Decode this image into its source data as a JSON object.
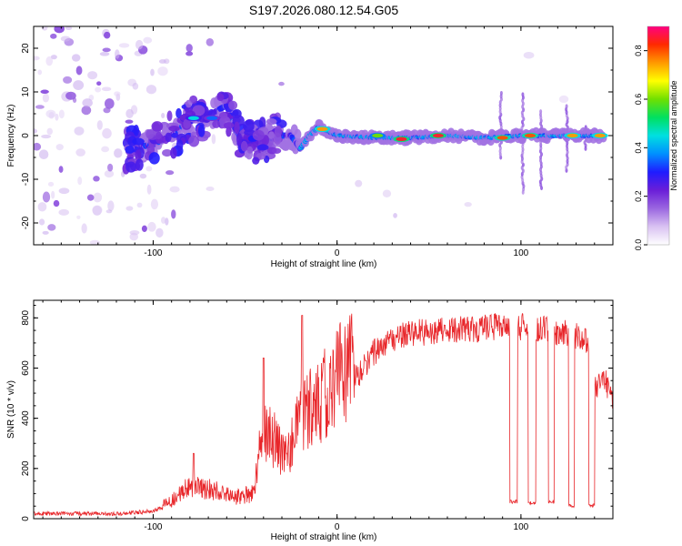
{
  "figure_title": "S197.2026.080.12.54.G05",
  "colors": {
    "snr_line": "#e8262a",
    "axis": "#000000",
    "background": "#ffffff"
  },
  "colorbar": {
    "label": "Normalized spectral amplitude",
    "range": [
      0.0,
      0.9
    ],
    "ticks": [
      "0.0",
      "0.2",
      "0.4",
      "0.6",
      "0.8"
    ],
    "colormap": [
      "#ffffff",
      "#d9c2f2",
      "#9a66e0",
      "#6a1ed8",
      "#1f1cff",
      "#0090ff",
      "#00e0e0",
      "#00e060",
      "#70e000",
      "#ffff00",
      "#ff9a00",
      "#ff2a00",
      "#ff0080"
    ]
  },
  "chart_data": [
    {
      "type": "heatmap",
      "title": "S197.2026.080.12.54.G05",
      "xlabel": "Height of straight line (km)",
      "ylabel": "Frequency (Hz)",
      "xlim": [
        -165,
        150
      ],
      "ylim": [
        -25,
        25
      ],
      "xticks": [
        "-100",
        "0",
        "100"
      ],
      "yticks": [
        "-20",
        "-10",
        "0",
        "10",
        "20"
      ],
      "ridge": [
        {
          "x": -112,
          "y": -3
        },
        {
          "x": -100,
          "y": -2
        },
        {
          "x": -90,
          "y": 0
        },
        {
          "x": -82,
          "y": 3
        },
        {
          "x": -75,
          "y": 4
        },
        {
          "x": -68,
          "y": 5
        },
        {
          "x": -60,
          "y": 7
        },
        {
          "x": -55,
          "y": 1
        },
        {
          "x": -50,
          "y": -2
        },
        {
          "x": -40,
          "y": -1
        },
        {
          "x": -30,
          "y": 0
        },
        {
          "x": -25,
          "y": 0
        },
        {
          "x": -20,
          "y": -3
        },
        {
          "x": -15,
          "y": 0
        },
        {
          "x": -10,
          "y": 2
        },
        {
          "x": -5,
          "y": 1
        },
        {
          "x": 0,
          "y": 0
        },
        {
          "x": 20,
          "y": -0.5
        },
        {
          "x": 40,
          "y": -0.5
        },
        {
          "x": 60,
          "y": 0
        },
        {
          "x": 80,
          "y": -0.5
        },
        {
          "x": 100,
          "y": 0
        },
        {
          "x": 120,
          "y": 0
        },
        {
          "x": 145,
          "y": 0
        }
      ],
      "hot_spots": [
        {
          "x": 35,
          "y": -0.8,
          "value": 0.85
        },
        {
          "x": 55,
          "y": 0,
          "value": 0.85
        },
        {
          "x": 90,
          "y": -0.5,
          "value": 0.8
        },
        {
          "x": 105,
          "y": 0,
          "value": 0.8
        },
        {
          "x": 128,
          "y": 0,
          "value": 0.75
        },
        {
          "x": 143,
          "y": 0,
          "value": 0.75
        },
        {
          "x": -8,
          "y": 1.5,
          "value": 0.75
        },
        {
          "x": 22,
          "y": 0,
          "value": 0.6
        },
        {
          "x": -78,
          "y": 4,
          "value": 0.45
        },
        {
          "x": -68,
          "y": 4,
          "value": 0.35
        }
      ],
      "vertical_spikes": [
        {
          "x": 89,
          "ymin": -5,
          "ymax": 10
        },
        {
          "x": 101,
          "ymin": -13,
          "ymax": 10
        },
        {
          "x": 111,
          "ymin": -12,
          "ymax": 6
        },
        {
          "x": 125,
          "ymin": -8,
          "ymax": 7
        },
        {
          "x": 135,
          "ymin": -3,
          "ymax": 2
        }
      ]
    },
    {
      "type": "line",
      "xlabel": "Height of straight line (km)",
      "ylabel": "SNR (10 * v/v)",
      "xlim": [
        -165,
        150
      ],
      "ylim": [
        0,
        870
      ],
      "xticks": [
        "-100",
        "0",
        "100"
      ],
      "yticks": [
        "0",
        "200",
        "400",
        "600",
        "800"
      ],
      "envelope": [
        {
          "x": -165,
          "y": 20
        },
        {
          "x": -120,
          "y": 20
        },
        {
          "x": -100,
          "y": 30
        },
        {
          "x": -90,
          "y": 60
        },
        {
          "x": -80,
          "y": 110
        },
        {
          "x": -70,
          "y": 100
        },
        {
          "x": -55,
          "y": 70
        },
        {
          "x": -45,
          "y": 90
        },
        {
          "x": -40,
          "y": 320
        },
        {
          "x": -30,
          "y": 230
        },
        {
          "x": -25,
          "y": 250
        },
        {
          "x": -20,
          "y": 330
        },
        {
          "x": -10,
          "y": 400
        },
        {
          "x": 0,
          "y": 470
        },
        {
          "x": 10,
          "y": 560
        },
        {
          "x": 20,
          "y": 660
        },
        {
          "x": 30,
          "y": 720
        },
        {
          "x": 40,
          "y": 740
        },
        {
          "x": 60,
          "y": 750
        },
        {
          "x": 80,
          "y": 760
        },
        {
          "x": 95,
          "y": 770
        },
        {
          "x": 105,
          "y": 760
        },
        {
          "x": 115,
          "y": 750
        },
        {
          "x": 125,
          "y": 740
        },
        {
          "x": 135,
          "y": 720
        },
        {
          "x": 140,
          "y": 520
        },
        {
          "x": 145,
          "y": 560
        },
        {
          "x": 150,
          "y": 490
        }
      ],
      "spikes": [
        {
          "x": -40,
          "y": 640
        },
        {
          "x": -19,
          "y": 810
        },
        {
          "x": -78,
          "y": 260
        }
      ],
      "dropouts": [
        {
          "x0": 94,
          "x1": 98,
          "y": 60
        },
        {
          "x0": 104,
          "x1": 108,
          "y": 55
        },
        {
          "x0": 115,
          "x1": 118,
          "y": 60
        },
        {
          "x0": 126,
          "x1": 129,
          "y": 45
        },
        {
          "x0": 137,
          "x1": 140,
          "y": 45
        }
      ]
    }
  ]
}
